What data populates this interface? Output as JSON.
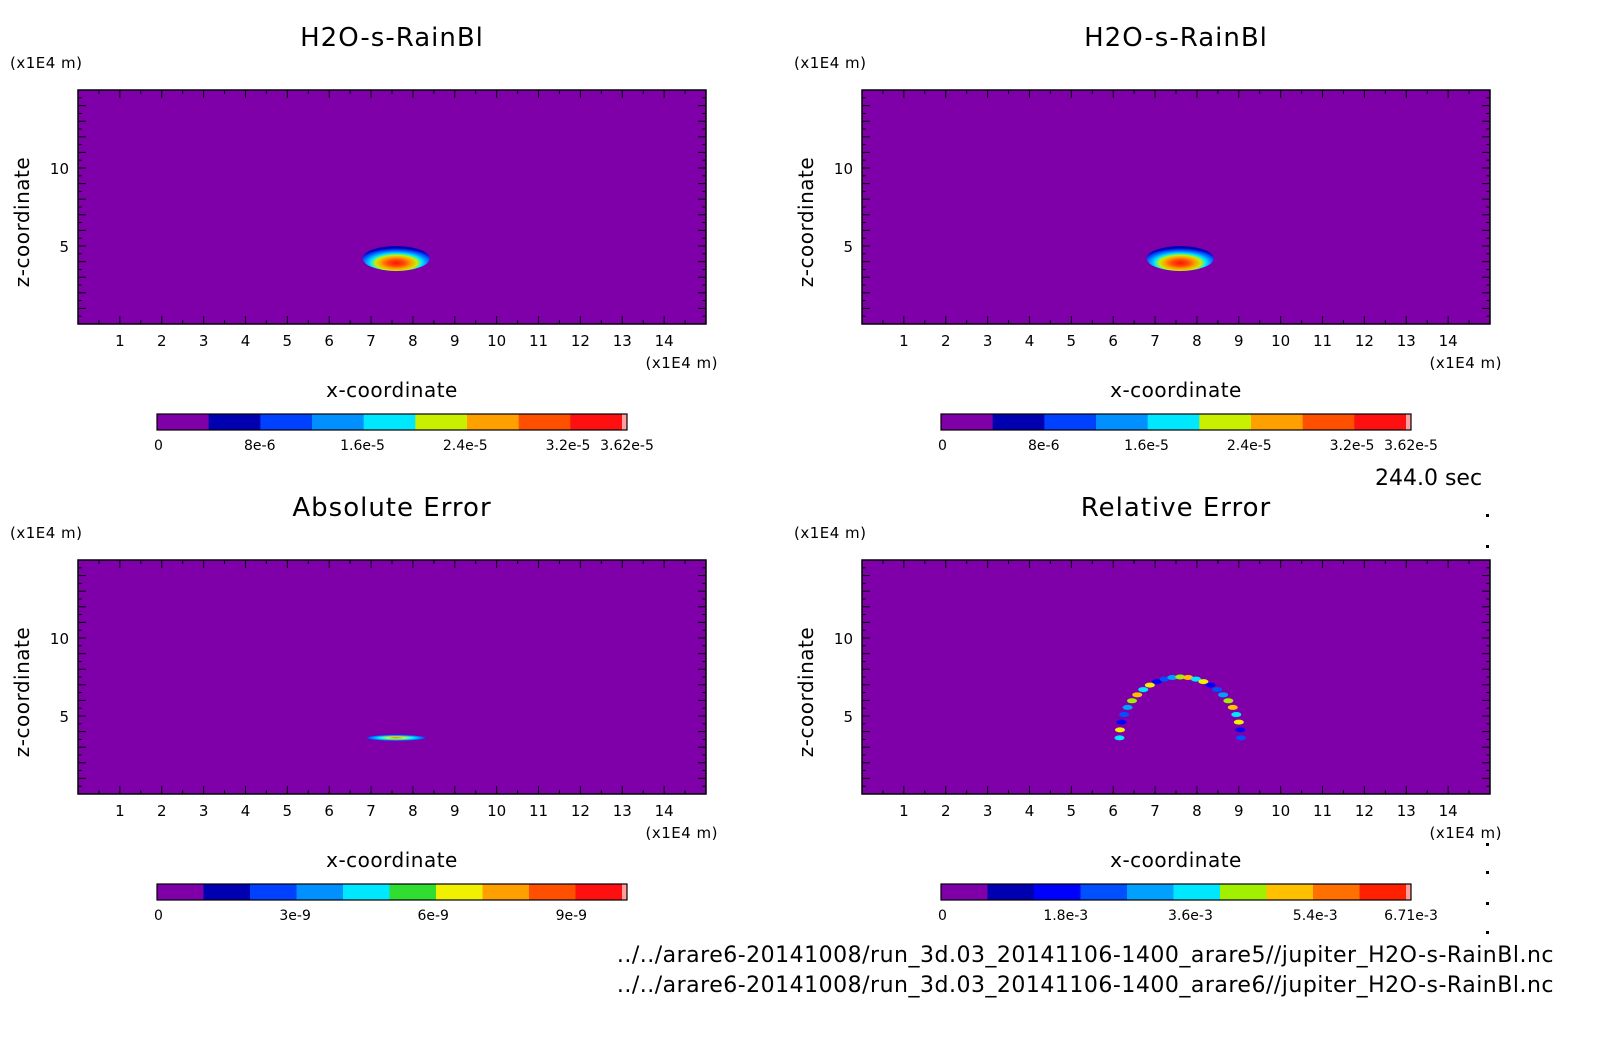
{
  "time_label": "244.0 sec",
  "footer": {
    "line1": "../../arare6-20141008/run_3d.03_20141106-1400_arare5//jupiter_H2O-s-RainBl.nc",
    "line2": "../../arare6-20141008/run_3d.03_20141106-1400_arare6//jupiter_H2O-s-RainBl.nc"
  },
  "colors": {
    "background": "#7f00a8",
    "scale": [
      "#7f00a8",
      "#0000b0",
      "#0040ff",
      "#0090ff",
      "#00e8ff",
      "#40dd00",
      "#f0f000",
      "#ffa000",
      "#ff5000",
      "#ff1010",
      "#ffa0a0"
    ]
  },
  "chart_data": [
    {
      "type": "heatmap",
      "title": "H2O-s-RainBl",
      "xlabel": "x-coordinate",
      "ylabel": "z-coordinate",
      "x_unit": "(x1E4 m)",
      "y_unit": "(x1E4 m)",
      "xlim": [
        0,
        15
      ],
      "ylim": [
        0,
        15
      ],
      "x_ticks": [
        "1",
        "2",
        "3",
        "4",
        "5",
        "6",
        "7",
        "8",
        "9",
        "10",
        "11",
        "12",
        "13",
        "14"
      ],
      "y_ticks": [
        "5",
        "10"
      ],
      "feature": {
        "shape": "blob",
        "center_x": 7.6,
        "center_z": 4.2,
        "half_width": 0.8,
        "half_height": 0.8
      },
      "colorbar": {
        "levels": 9,
        "labels": [
          {
            "text": "0",
            "value": 0
          },
          {
            "text": "8e-6",
            "value": 8e-06
          },
          {
            "text": "1.6e-5",
            "value": 1.6e-05
          },
          {
            "text": "2.4e-5",
            "value": 2.4e-05
          },
          {
            "text": "3.2e-5",
            "value": 3.2e-05
          },
          {
            "text": "3.62e-5",
            "value": 3.62e-05
          }
        ],
        "max": 3.62e-05,
        "colors": [
          "#7f00a8",
          "#0000b0",
          "#0040ff",
          "#0090ff",
          "#00e8ff",
          "#c8f000",
          "#ffa000",
          "#ff5000",
          "#ff1010",
          "#ffa0a0"
        ]
      }
    },
    {
      "type": "heatmap",
      "title": "H2O-s-RainBl",
      "xlabel": "x-coordinate",
      "ylabel": "z-coordinate",
      "x_unit": "(x1E4 m)",
      "y_unit": "(x1E4 m)",
      "xlim": [
        0,
        15
      ],
      "ylim": [
        0,
        15
      ],
      "x_ticks": [
        "1",
        "2",
        "3",
        "4",
        "5",
        "6",
        "7",
        "8",
        "9",
        "10",
        "11",
        "12",
        "13",
        "14"
      ],
      "y_ticks": [
        "5",
        "10"
      ],
      "feature": {
        "shape": "blob",
        "center_x": 7.6,
        "center_z": 4.2,
        "half_width": 0.8,
        "half_height": 0.8
      },
      "colorbar": {
        "levels": 9,
        "labels": [
          {
            "text": "0",
            "value": 0
          },
          {
            "text": "8e-6",
            "value": 8e-06
          },
          {
            "text": "1.6e-5",
            "value": 1.6e-05
          },
          {
            "text": "2.4e-5",
            "value": 2.4e-05
          },
          {
            "text": "3.2e-5",
            "value": 3.2e-05
          },
          {
            "text": "3.62e-5",
            "value": 3.62e-05
          }
        ],
        "max": 3.62e-05,
        "colors": [
          "#7f00a8",
          "#0000b0",
          "#0040ff",
          "#0090ff",
          "#00e8ff",
          "#c8f000",
          "#ffa000",
          "#ff5000",
          "#ff1010",
          "#ffa0a0"
        ]
      }
    },
    {
      "type": "heatmap",
      "title": "Absolute Error",
      "xlabel": "x-coordinate",
      "ylabel": "z-coordinate",
      "x_unit": "(x1E4 m)",
      "y_unit": "(x1E4 m)",
      "xlim": [
        0,
        15
      ],
      "ylim": [
        0,
        15
      ],
      "x_ticks": [
        "1",
        "2",
        "3",
        "4",
        "5",
        "6",
        "7",
        "8",
        "9",
        "10",
        "11",
        "12",
        "13",
        "14"
      ],
      "y_ticks": [
        "5",
        "10"
      ],
      "feature": {
        "shape": "streak",
        "center_x": 7.6,
        "center_z": 3.6,
        "half_width": 0.7,
        "half_height": 0.15
      },
      "colorbar": {
        "levels": 10,
        "labels": [
          {
            "text": "0",
            "value": 0
          },
          {
            "text": "3e-9",
            "value": 3e-09
          },
          {
            "text": "6e-9",
            "value": 6e-09
          },
          {
            "text": "9e-9",
            "value": 9e-09
          }
        ],
        "max": 1.01e-08,
        "colors": [
          "#7f00a8",
          "#0000b0",
          "#0040ff",
          "#0090ff",
          "#00e8ff",
          "#30dd30",
          "#f0f000",
          "#ffa000",
          "#ff5000",
          "#ff1010",
          "#ffa0a0"
        ]
      }
    },
    {
      "type": "heatmap",
      "title": "Relative Error",
      "xlabel": "x-coordinate",
      "ylabel": "z-coordinate",
      "x_unit": "(x1E4 m)",
      "y_unit": "(x1E4 m)",
      "xlim": [
        0,
        15
      ],
      "ylim": [
        0,
        15
      ],
      "x_ticks": [
        "1",
        "2",
        "3",
        "4",
        "5",
        "6",
        "7",
        "8",
        "9",
        "10",
        "11",
        "12",
        "13",
        "14"
      ],
      "y_ticks": [
        "5",
        "10"
      ],
      "feature": {
        "shape": "arc",
        "center_x": 7.6,
        "center_z": 3.6,
        "radius_x": 1.45,
        "radius_z": 3.9
      },
      "colorbar": {
        "levels": 10,
        "labels": [
          {
            "text": "0",
            "value": 0
          },
          {
            "text": "1.8e-3",
            "value": 0.0018
          },
          {
            "text": "3.6e-3",
            "value": 0.0036
          },
          {
            "text": "5.4e-3",
            "value": 0.0054
          },
          {
            "text": "6.71e-3",
            "value": 0.00671
          }
        ],
        "max": 0.00671,
        "colors": [
          "#7f00a8",
          "#0000b0",
          "#0000ff",
          "#0050ff",
          "#00a0ff",
          "#00e8ff",
          "#a0f000",
          "#ffc000",
          "#ff7000",
          "#ff2000",
          "#ffa0a0"
        ]
      }
    }
  ]
}
